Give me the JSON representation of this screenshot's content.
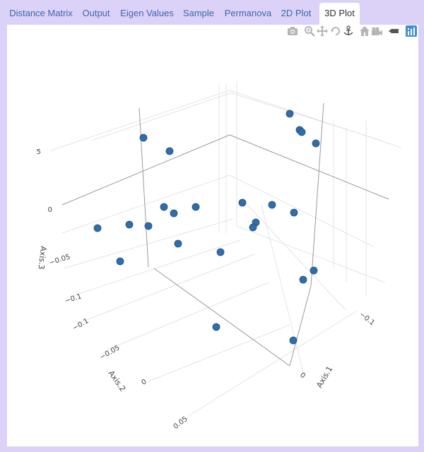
{
  "tabs": [
    {
      "label": "Distance Matrix",
      "active": false
    },
    {
      "label": "Output",
      "active": false
    },
    {
      "label": "Eigen Values",
      "active": false
    },
    {
      "label": "Sample",
      "active": false
    },
    {
      "label": "Permanova",
      "active": false
    },
    {
      "label": "2D Plot",
      "active": false
    },
    {
      "label": "3D Plot",
      "active": true
    }
  ],
  "modebar": {
    "buttons": [
      "camera-icon",
      "zoom-icon",
      "pan-icon",
      "orbit-rotation-icon",
      "turntable-rotation-icon",
      "reset-camera-icon",
      "camera-view-icon",
      "hover-toggle-icon",
      "plotly-logo-icon"
    ]
  },
  "chart_data": {
    "type": "scatter",
    "dimensions": 3,
    "marker_color": "#2f6ea8",
    "axes": {
      "x": {
        "title": "Axis.1",
        "ticks": [
          "−0.1",
          "0"
        ]
      },
      "y": {
        "title": "Axis.2",
        "ticks": [
          "−0.1",
          "−0.05",
          "0",
          "0.05"
        ]
      },
      "z": {
        "title": "Axis.3",
        "ticks": [
          "−0.1",
          "−0.05",
          "0",
          "5"
        ]
      }
    },
    "grid": true,
    "legend": "none",
    "projected_points": [
      [
        410,
        161
      ],
      [
        424,
        184
      ],
      [
        427,
        187
      ],
      [
        447,
        203
      ],
      [
        203,
        195
      ],
      [
        240,
        214
      ],
      [
        232,
        293
      ],
      [
        246,
        302
      ],
      [
        277,
        293
      ],
      [
        343,
        287
      ],
      [
        385,
        290
      ],
      [
        416,
        301
      ],
      [
        138,
        323
      ],
      [
        183,
        318
      ],
      [
        210,
        320
      ],
      [
        362,
        315
      ],
      [
        358,
        322
      ],
      [
        252,
        345
      ],
      [
        312,
        357
      ],
      [
        170,
        370
      ],
      [
        444,
        383
      ],
      [
        429,
        396
      ],
      [
        306,
        463
      ],
      [
        415,
        482
      ]
    ]
  }
}
